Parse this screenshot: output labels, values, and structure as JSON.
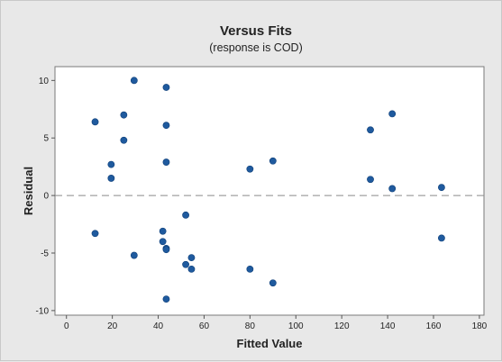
{
  "chart_data": {
    "type": "scatter",
    "title": "Versus Fits",
    "subtitle": "(response is COD)",
    "xlabel": "Fitted Value",
    "ylabel": "Residual",
    "xlim": [
      -5,
      182
    ],
    "ylim": [
      -10.4,
      11.2
    ],
    "x_ticks": [
      0,
      20,
      40,
      60,
      80,
      100,
      120,
      140,
      160,
      180
    ],
    "y_ticks": [
      10,
      5,
      0,
      -5,
      -10
    ],
    "reference_line": {
      "y": 0,
      "style": "dashed"
    },
    "grid": false,
    "marker_color": "#1f5a9e",
    "points": [
      {
        "x": 12.5,
        "y": 6.4
      },
      {
        "x": 12.5,
        "y": -3.3
      },
      {
        "x": 19.5,
        "y": 2.7
      },
      {
        "x": 19.5,
        "y": 1.5
      },
      {
        "x": 25,
        "y": 7.0
      },
      {
        "x": 25,
        "y": 4.8
      },
      {
        "x": 29.5,
        "y": 10.0
      },
      {
        "x": 29.5,
        "y": -5.2
      },
      {
        "x": 42,
        "y": -3.1
      },
      {
        "x": 42,
        "y": -4.0
      },
      {
        "x": 43.5,
        "y": 9.4
      },
      {
        "x": 43.5,
        "y": 6.1
      },
      {
        "x": 43.5,
        "y": 2.9
      },
      {
        "x": 43.5,
        "y": -4.6
      },
      {
        "x": 43.5,
        "y": -4.7
      },
      {
        "x": 43.5,
        "y": -9.0
      },
      {
        "x": 52,
        "y": -1.7
      },
      {
        "x": 52,
        "y": -6.0
      },
      {
        "x": 54.5,
        "y": -5.4
      },
      {
        "x": 54.5,
        "y": -6.4
      },
      {
        "x": 80,
        "y": 2.3
      },
      {
        "x": 80,
        "y": -6.4
      },
      {
        "x": 90,
        "y": 3.0
      },
      {
        "x": 90,
        "y": -7.6
      },
      {
        "x": 132.5,
        "y": 5.7
      },
      {
        "x": 132.5,
        "y": 1.4
      },
      {
        "x": 142,
        "y": 7.1
      },
      {
        "x": 142,
        "y": 0.6
      },
      {
        "x": 163.5,
        "y": 0.7
      },
      {
        "x": 163.5,
        "y": -3.7
      }
    ]
  },
  "colors": {
    "background": "#e8e8e8",
    "plot_area": "#ffffff",
    "marker": "#1f5a9e",
    "reference_line": "#8a8a8a"
  }
}
